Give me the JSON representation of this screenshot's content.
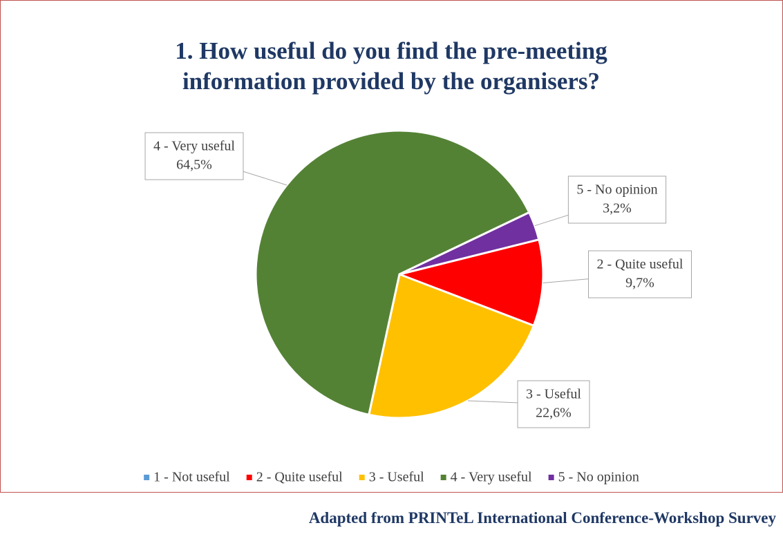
{
  "chart_data": {
    "type": "pie",
    "title": "1. How useful do you find the pre-meeting information provided by the organisers?",
    "categories": [
      "1 - Not useful",
      "2 - Quite useful",
      "3 - Useful",
      "4 - Very useful",
      "5 - No opinion"
    ],
    "values": [
      0,
      9.7,
      22.6,
      64.5,
      3.2
    ],
    "value_labels": [
      null,
      "9,7%",
      "22,6%",
      "64,5%",
      "3,2%"
    ],
    "colors": [
      "#5b9bd5",
      "#ff0000",
      "#ffc000",
      "#548235",
      "#7030a0"
    ],
    "legend": "bottom",
    "source": "Adapted from PRINTeL International Conference-Workshop Survey"
  }
}
